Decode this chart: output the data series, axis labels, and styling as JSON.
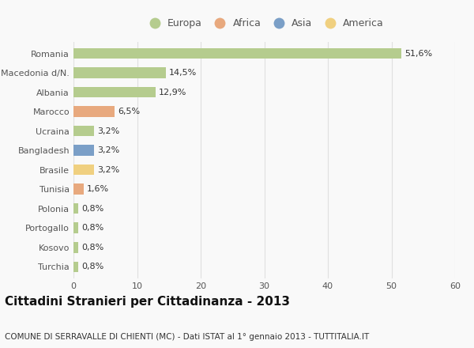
{
  "countries": [
    "Romania",
    "Macedonia d/N.",
    "Albania",
    "Marocco",
    "Ucraina",
    "Bangladesh",
    "Brasile",
    "Tunisia",
    "Polonia",
    "Portogallo",
    "Kosovo",
    "Turchia"
  ],
  "values": [
    51.6,
    14.5,
    12.9,
    6.5,
    3.2,
    3.2,
    3.2,
    1.6,
    0.8,
    0.8,
    0.8,
    0.8
  ],
  "labels": [
    "51,6%",
    "14,5%",
    "12,9%",
    "6,5%",
    "3,2%",
    "3,2%",
    "3,2%",
    "1,6%",
    "0,8%",
    "0,8%",
    "0,8%",
    "0,8%"
  ],
  "continents": [
    "Europa",
    "Europa",
    "Europa",
    "Africa",
    "Europa",
    "Asia",
    "America",
    "Africa",
    "Europa",
    "Europa",
    "Europa",
    "Europa"
  ],
  "colors": {
    "Europa": "#b5cc8e",
    "Africa": "#e8a97e",
    "Asia": "#7b9fc7",
    "America": "#f0d080"
  },
  "legend_order": [
    "Europa",
    "Africa",
    "Asia",
    "America"
  ],
  "xlim": [
    0,
    60
  ],
  "xticks": [
    0,
    10,
    20,
    30,
    40,
    50,
    60
  ],
  "title": "Cittadini Stranieri per Cittadinanza - 2013",
  "subtitle": "COMUNE DI SERRAVALLE DI CHIENTI (MC) - Dati ISTAT al 1° gennaio 2013 - TUTTITALIA.IT",
  "background_color": "#f9f9f9",
  "grid_color": "#e0e0e0",
  "bar_height": 0.55,
  "title_fontsize": 11,
  "subtitle_fontsize": 7.5,
  "label_fontsize": 8,
  "tick_fontsize": 8,
  "legend_fontsize": 9,
  "text_color": "#555555"
}
